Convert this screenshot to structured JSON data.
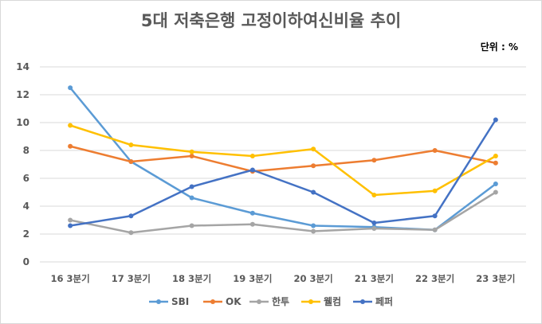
{
  "chart_data": {
    "type": "line",
    "title": "5대 저축은행 고정이하여신비율 추이",
    "unit": "단위 : %",
    "categories": [
      "16 3분기",
      "17 3분기",
      "18 3분기",
      "19 3분기",
      "20 3분기",
      "21 3분기",
      "22 3분기",
      "23 3분기"
    ],
    "ylim": [
      0,
      14
    ],
    "yticks": [
      0,
      2,
      4,
      6,
      8,
      10,
      12,
      14
    ],
    "grid": true,
    "legend_position": "bottom",
    "series": [
      {
        "name": "SBI",
        "color": "#5B9BD5",
        "values": [
          12.5,
          7.2,
          4.6,
          3.5,
          2.6,
          2.5,
          2.3,
          5.6
        ]
      },
      {
        "name": "OK",
        "color": "#ED7D31",
        "values": [
          8.3,
          7.2,
          7.6,
          6.5,
          6.9,
          7.3,
          8.0,
          7.1
        ]
      },
      {
        "name": "한투",
        "color": "#A5A5A5",
        "values": [
          3.0,
          2.1,
          2.6,
          2.7,
          2.2,
          2.4,
          2.3,
          5.0
        ]
      },
      {
        "name": "웰컴",
        "color": "#FFC000",
        "values": [
          9.8,
          8.4,
          7.9,
          7.6,
          8.1,
          4.8,
          5.1,
          7.6
        ]
      },
      {
        "name": "페퍼",
        "color": "#4472C4",
        "values": [
          2.6,
          3.3,
          5.4,
          6.6,
          5.0,
          2.8,
          3.3,
          10.2
        ]
      }
    ]
  }
}
